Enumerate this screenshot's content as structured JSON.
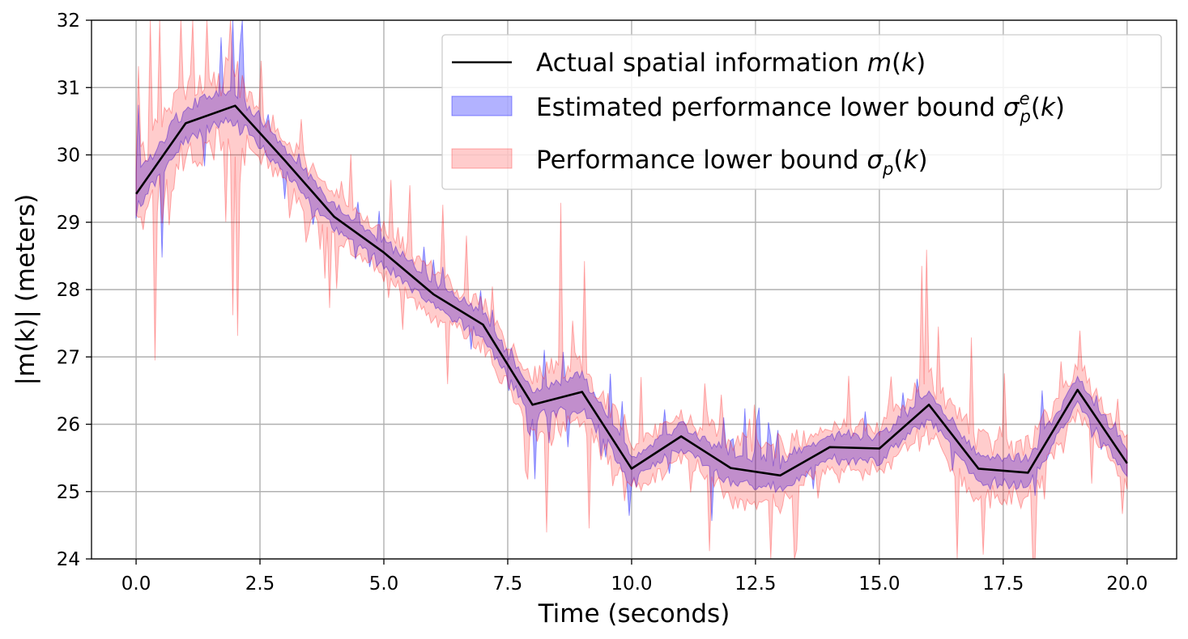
{
  "chart_data": {
    "type": "line",
    "title": "",
    "xlabel": "Time (seconds)",
    "ylabel": "|m(k)| (meters)",
    "xlim": [
      -0.9,
      21.0
    ],
    "ylim": [
      24,
      32
    ],
    "xticks": [
      0.0,
      2.5,
      5.0,
      7.5,
      10.0,
      12.5,
      15.0,
      17.5,
      20.0
    ],
    "xtick_labels": [
      "0.0",
      "2.5",
      "5.0",
      "7.5",
      "10.0",
      "12.5",
      "15.0",
      "17.5",
      "20.0"
    ],
    "yticks": [
      24,
      25,
      26,
      27,
      28,
      29,
      30,
      31,
      32
    ],
    "ytick_labels": [
      "24",
      "25",
      "26",
      "27",
      "28",
      "29",
      "30",
      "31",
      "32"
    ],
    "grid": true,
    "legend_position": "top-right",
    "legend": {
      "line_label_prefix": "Actual spatial information ",
      "line_label_math": "m",
      "blue_label_prefix": "Estimated performance lower bound ",
      "blue_label_math": "σ",
      "red_label_prefix": "Performance lower bound ",
      "red_label_math": "σ",
      "arg": "k"
    },
    "series": [
      {
        "name": "Actual spatial information m(k)",
        "kind": "line",
        "color": "#000000",
        "x": [
          0,
          1,
          2,
          3,
          4,
          5,
          6,
          7,
          8,
          9,
          10,
          11,
          12,
          13,
          14,
          15,
          16,
          17,
          18,
          19,
          20
        ],
        "values": [
          29.42,
          30.47,
          30.73,
          29.92,
          29.08,
          28.55,
          27.93,
          27.48,
          26.29,
          26.48,
          25.34,
          25.82,
          25.35,
          25.24,
          25.66,
          25.64,
          26.29,
          25.34,
          25.28,
          26.51,
          25.42
        ]
      },
      {
        "name": "Estimated performance lower bound σ_p^e(k)",
        "kind": "band",
        "color": "#0000ff",
        "fill_opacity": 0.3,
        "typical_half_width": 0.15,
        "noise_amplitude": 0.2,
        "seed": 7
      },
      {
        "name": "Performance lower bound σ_p(k)",
        "kind": "band",
        "color": "#ff0000",
        "fill_opacity": 0.2,
        "typical_half_width": 0.25,
        "noise_amplitude": 0.55,
        "seed": 13
      }
    ]
  }
}
